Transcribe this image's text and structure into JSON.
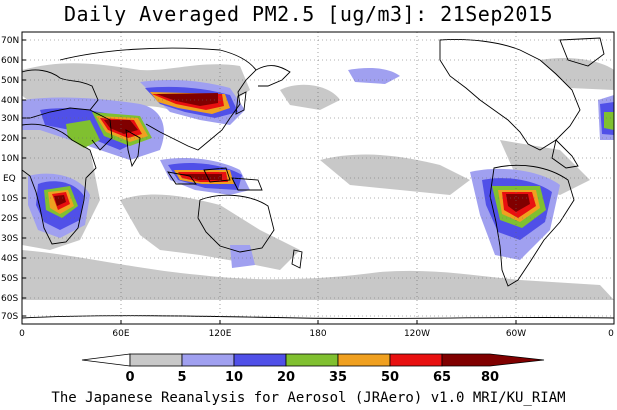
{
  "title": "Daily Averaged PM2.5 [ug/m3]: 21Sep2015",
  "footer": "The Japanese Reanalysis for Aerosol (JRAero) v1.0 MRI/KU_RIAM",
  "map": {
    "projection": "cylindrical equidistant",
    "lon_range": [
      0,
      360
    ],
    "lat_range": [
      -75,
      75
    ],
    "lat_ticks": [
      "70N",
      "60N",
      "50N",
      "40N",
      "30N",
      "20N",
      "10N",
      "EQ",
      "10S",
      "20S",
      "30S",
      "40S",
      "50S",
      "60S",
      "70S"
    ],
    "lon_ticks": [
      "0",
      "60E",
      "120E",
      "180",
      "120W",
      "60W",
      "0"
    ],
    "gridlines": "dotted"
  },
  "colorbar": {
    "levels": [
      "0",
      "5",
      "10",
      "20",
      "35",
      "50",
      "65",
      "80"
    ],
    "colors": [
      "#ffffff",
      "#c8c8c8",
      "#a0a0f0",
      "#5050e8",
      "#80c030",
      "#f0a020",
      "#e81010",
      "#800000"
    ]
  }
}
